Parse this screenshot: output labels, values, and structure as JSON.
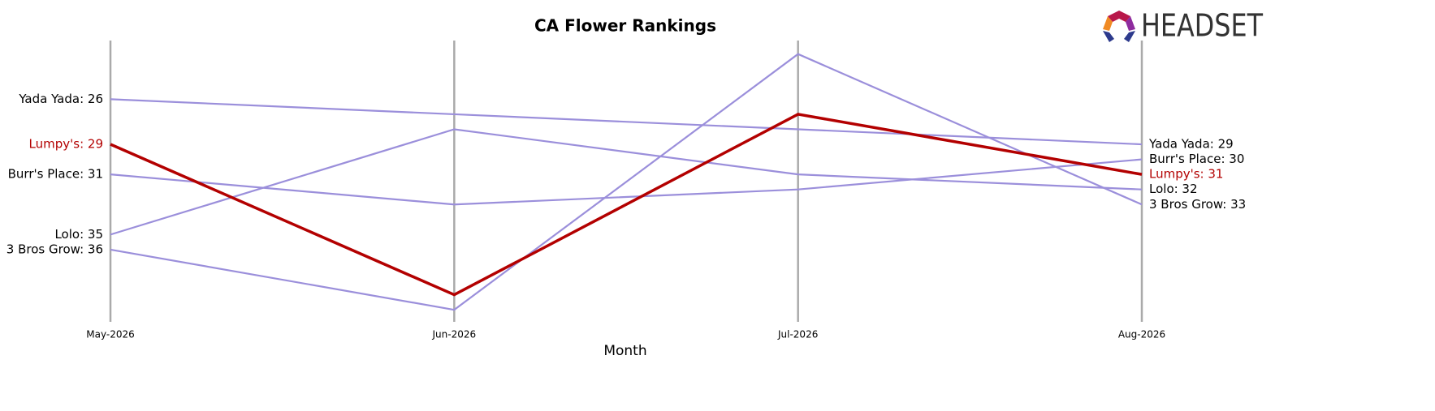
{
  "chart_data": {
    "type": "line",
    "title": "CA Flower Rankings",
    "xlabel": "Month",
    "logo": "HEADSET",
    "categories": [
      "May-2026",
      "Jun-2026",
      "Jul-2026",
      "Aug-2026"
    ],
    "ylim": [
      40.8,
      22.1
    ],
    "highlight": "Lumpy's",
    "series": [
      {
        "name": "Yada Yada",
        "color": "#9b8fdb",
        "values": [
          26,
          27,
          28,
          29
        ],
        "value_labels": [
          "Yada Yada: 26",
          null,
          null,
          "Yada Yada: 29"
        ]
      },
      {
        "name": "Lumpy's",
        "color": "#b30000",
        "values": [
          29,
          39,
          27,
          31
        ],
        "value_labels": [
          "Lumpy's: 29",
          null,
          null,
          "Lumpy's: 31"
        ]
      },
      {
        "name": "Burr's Place",
        "color": "#9b8fdb",
        "values": [
          31,
          33,
          32,
          30
        ],
        "value_labels": [
          "Burr's Place: 31",
          null,
          null,
          "Burr's Place: 30"
        ]
      },
      {
        "name": "Lolo",
        "color": "#9b8fdb",
        "values": [
          35,
          28,
          31,
          32
        ],
        "value_labels": [
          "Lolo: 35",
          null,
          null,
          "Lolo: 32"
        ]
      },
      {
        "name": "3 Bros Grow",
        "color": "#9b8fdb",
        "values": [
          36,
          40,
          23,
          33
        ],
        "value_labels": [
          "3 Bros Grow: 36",
          null,
          null,
          "3 Bros Grow: 33"
        ]
      }
    ]
  }
}
